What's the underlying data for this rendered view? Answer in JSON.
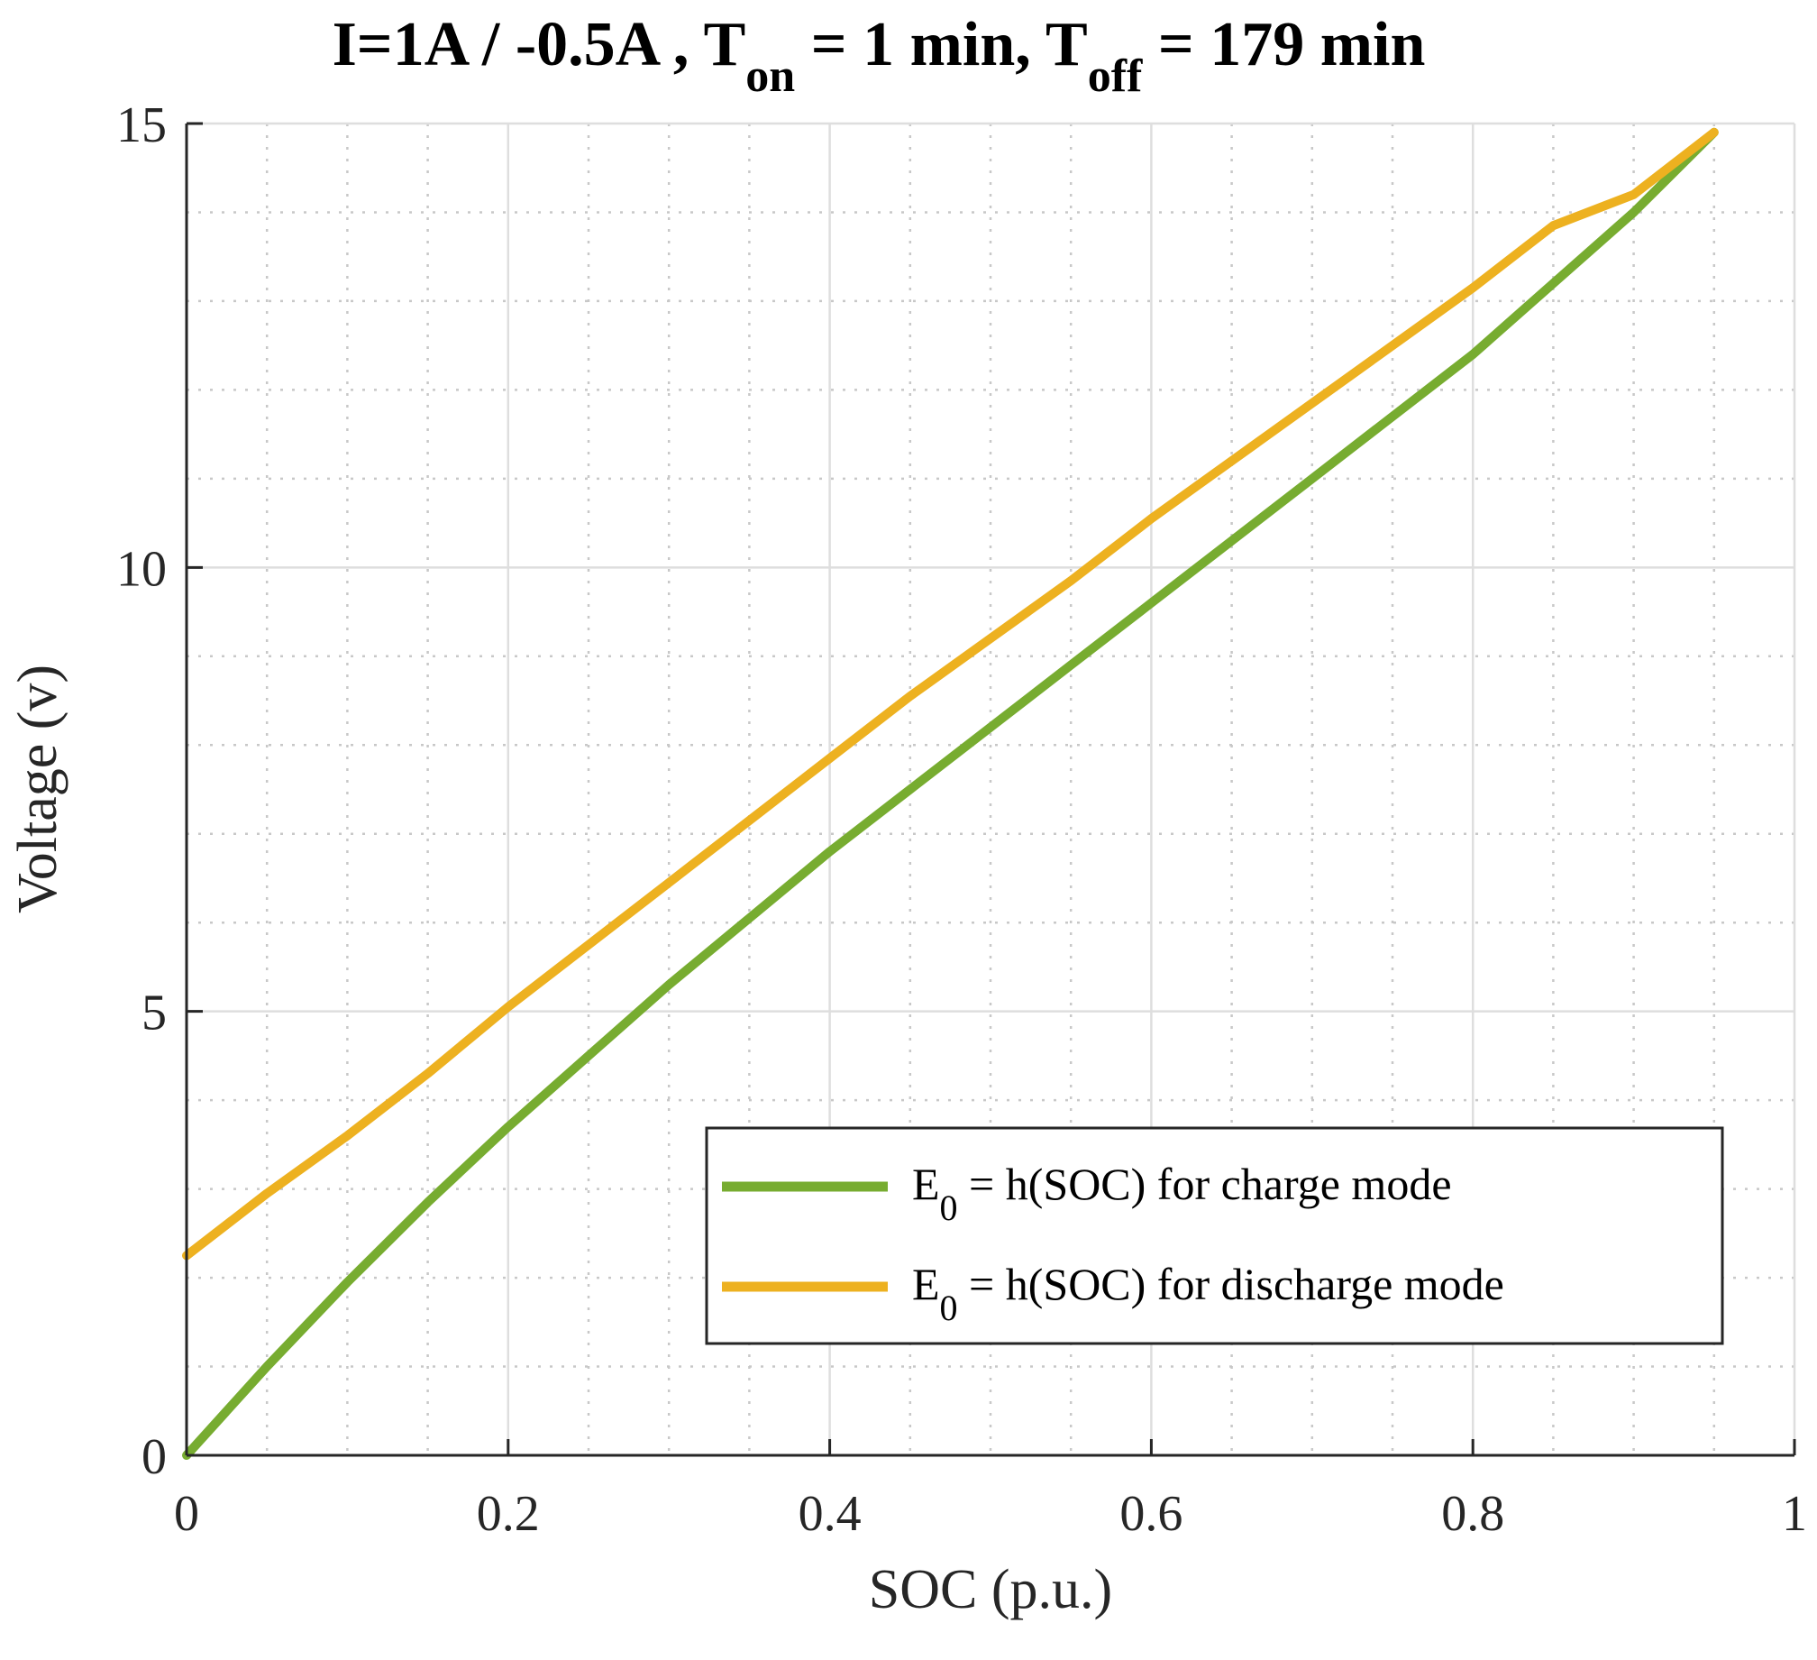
{
  "chart_data": {
    "type": "line",
    "title": {
      "main": "I=1A / -0.5A , T",
      "on_sub": "on",
      "mid": " = 1 min, T",
      "off_sub": "off",
      "end": " = 179 min"
    },
    "xlabel": "SOC (p.u.)",
    "ylabel": "Voltage (v)",
    "xlim": [
      0,
      1
    ],
    "ylim": [
      0,
      15
    ],
    "xticks": [
      0,
      0.2,
      0.4,
      0.6,
      0.8,
      1
    ],
    "xtick_labels": [
      "0",
      "0.2",
      "0.4",
      "0.6",
      "0.8",
      "1"
    ],
    "yticks": [
      0,
      5,
      10,
      15
    ],
    "ytick_labels": [
      "0",
      "5",
      "10",
      "15"
    ],
    "x_minor_grid": [
      0.05,
      0.1,
      0.15,
      0.25,
      0.3,
      0.35,
      0.45,
      0.5,
      0.55,
      0.65,
      0.7,
      0.75,
      0.85,
      0.9,
      0.95
    ],
    "y_minor_grid": [
      1,
      2,
      3,
      4,
      6,
      7,
      8,
      9,
      11,
      12,
      13,
      14
    ],
    "grid": true,
    "legend_position": "bottom-right",
    "series": [
      {
        "name": "E0 = h(SOC) for charge mode",
        "legend": {
          "prefix": "E",
          "sub": "0",
          "suffix": " = h(SOC) for charge mode"
        },
        "color": "#77AC30",
        "x": [
          0,
          0.05,
          0.1,
          0.15,
          0.2,
          0.25,
          0.3,
          0.35,
          0.4,
          0.45,
          0.5,
          0.55,
          0.6,
          0.65,
          0.7,
          0.75,
          0.8,
          0.85,
          0.9,
          0.95
        ],
        "y": [
          0,
          1.0,
          1.95,
          2.85,
          3.7,
          4.5,
          5.3,
          6.05,
          6.8,
          7.5,
          8.2,
          8.9,
          9.6,
          10.3,
          11.0,
          11.7,
          12.4,
          13.2,
          14.0,
          14.9
        ]
      },
      {
        "name": "E0 = h(SOC) for discharge mode",
        "legend": {
          "prefix": "E",
          "sub": "0",
          "suffix": " = h(SOC) for discharge mode"
        },
        "color": "#EDB120",
        "x": [
          0,
          0.05,
          0.1,
          0.15,
          0.2,
          0.25,
          0.3,
          0.35,
          0.4,
          0.45,
          0.5,
          0.55,
          0.6,
          0.65,
          0.7,
          0.75,
          0.8,
          0.85,
          0.9,
          0.95
        ],
        "y": [
          2.25,
          2.95,
          3.6,
          4.3,
          5.05,
          5.75,
          6.45,
          7.15,
          7.85,
          8.55,
          9.2,
          9.85,
          10.55,
          11.2,
          11.85,
          12.5,
          13.15,
          13.85,
          14.2,
          14.9
        ]
      }
    ]
  }
}
